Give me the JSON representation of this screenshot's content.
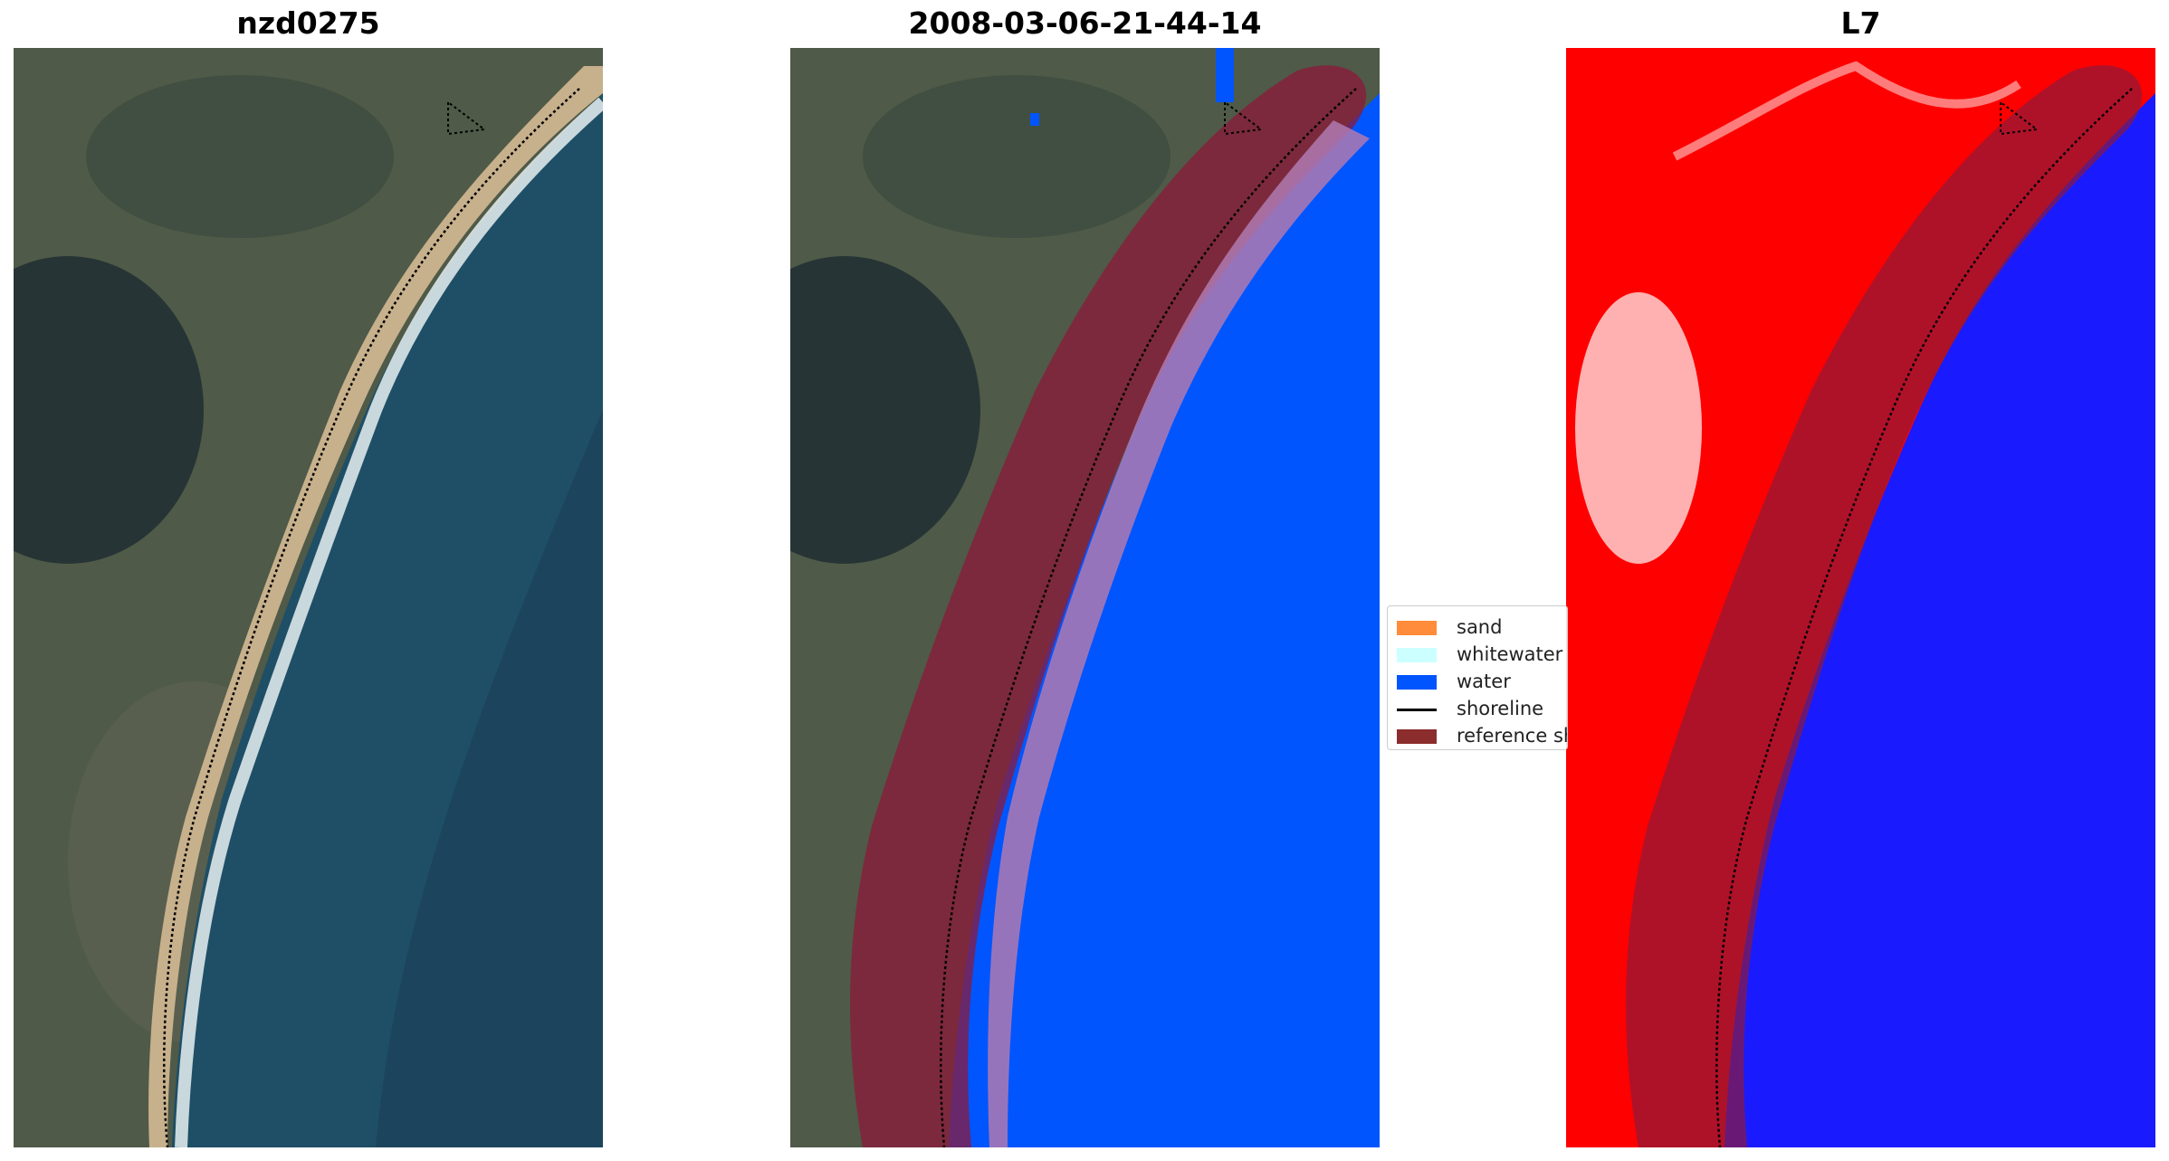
{
  "panels": [
    {
      "title": "nzd0275"
    },
    {
      "title": "2008-03-06-21-44-14"
    },
    {
      "title": "L7"
    }
  ],
  "legend": {
    "items": [
      {
        "label": "sand",
        "color": "#ff8c3a",
        "kind": "patch"
      },
      {
        "label": "whitewater",
        "color": "#ccffff",
        "kind": "patch"
      },
      {
        "label": "water",
        "color": "#0055ff",
        "kind": "patch"
      },
      {
        "label": "shoreline",
        "color": "#000000",
        "kind": "line"
      },
      {
        "label": "reference sh",
        "color": "#8b2d2d",
        "kind": "patch"
      }
    ]
  },
  "colors": {
    "land_rgb": "#4f5a48",
    "ocean_rgb": "#1e4f66",
    "beach": "#c7b08c",
    "surf": "#e8f0f2",
    "reference_band": "#8b1a3a",
    "classified_water": "#0055ff",
    "mndwi_land": "#ff0000",
    "mndwi_water": "#1a1aff"
  }
}
